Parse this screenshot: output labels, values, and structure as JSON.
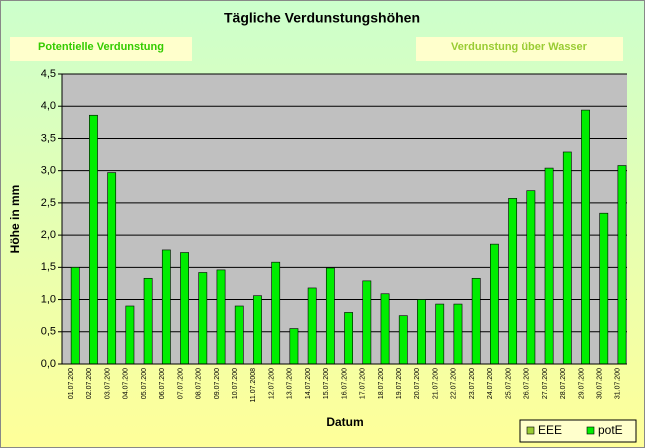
{
  "chart_data": {
    "type": "bar",
    "title": "Tägliche Verdunstungshöhen",
    "annotations": [
      "Potentielle Verdunstung",
      "Verdunstung über Wasser"
    ],
    "x_label": "Datum",
    "y_label": "Höhe in mm",
    "categories": [
      "01.07.200",
      "02.07.200",
      "03.07.200",
      "04.07.200",
      "05.07.200",
      "06.07.200",
      "07.07.200",
      "08.07.200",
      "09.07.200",
      "10.07.200",
      "11.07.2008",
      "12.07.200",
      "13.07.200",
      "14.07.200",
      "15.07.200",
      "16.07.200",
      "17.07.200",
      "18.07.200",
      "19.07.200",
      "20.07.200",
      "21.07.200",
      "22.07.200",
      "23.07.200",
      "24.07.200",
      "25.07.200",
      "26.07.200",
      "27.07.200",
      "28.07.200",
      "29.07.200",
      "30.07.200",
      "31.07.200"
    ],
    "series": [
      {
        "name": "EEE",
        "color": "#99cc33",
        "values": [
          null,
          null,
          null,
          null,
          null,
          null,
          null,
          null,
          null,
          null,
          null,
          null,
          null,
          null,
          null,
          null,
          null,
          null,
          null,
          null,
          null,
          null,
          null,
          null,
          null,
          null,
          null,
          null,
          null,
          null,
          null
        ]
      },
      {
        "name": "potE",
        "color": "#00ee00",
        "values": [
          1.5,
          3.86,
          2.97,
          0.9,
          1.33,
          1.77,
          1.73,
          1.42,
          1.46,
          0.9,
          1.06,
          1.58,
          0.55,
          1.18,
          1.49,
          0.8,
          1.29,
          1.09,
          0.75,
          1.0,
          0.93,
          0.93,
          1.33,
          1.86,
          2.57,
          2.69,
          3.04,
          3.29,
          3.94,
          2.34,
          3.08
        ]
      }
    ],
    "ylim": [
      0,
      4.5
    ],
    "yticks": [
      {
        "value": 0,
        "label": "0,0"
      },
      {
        "value": 0.5,
        "label": "0,5"
      },
      {
        "value": 1,
        "label": "1,0"
      },
      {
        "value": 1.5,
        "label": "1,5"
      },
      {
        "value": 2,
        "label": "2,0"
      },
      {
        "value": 2.5,
        "label": "2,5"
      },
      {
        "value": 3,
        "label": "3,0"
      },
      {
        "value": 3.5,
        "label": "3,5"
      },
      {
        "value": 4,
        "label": "4,0"
      },
      {
        "value": 4.5,
        "label": "4,5"
      }
    ],
    "grid": true,
    "legend": "bottom-right"
  }
}
